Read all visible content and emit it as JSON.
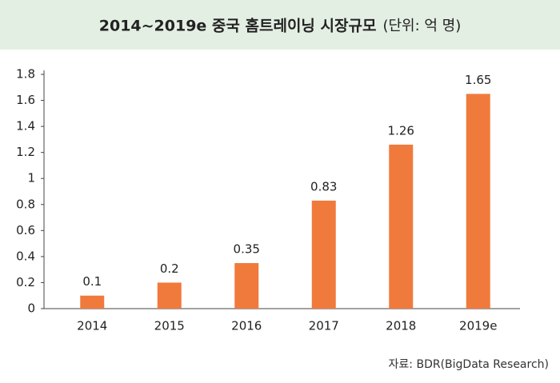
{
  "chart_data": {
    "type": "bar",
    "title": "2014~2019e 중국 홈트레이닝 시장규모",
    "unit": "(단위: 억 명)",
    "categories": [
      "2014",
      "2015",
      "2016",
      "2017",
      "2018",
      "2019e"
    ],
    "values": [
      0.1,
      0.2,
      0.35,
      0.83,
      1.26,
      1.65
    ],
    "color": "#f07a3c",
    "ylim": [
      0,
      1.8
    ],
    "yticks": [
      0,
      0.2,
      0.4,
      0.6,
      0.8,
      1,
      1.2,
      1.4,
      1.6,
      1.8
    ],
    "grid": false,
    "source": "자료: BDR(BigData Research)"
  }
}
